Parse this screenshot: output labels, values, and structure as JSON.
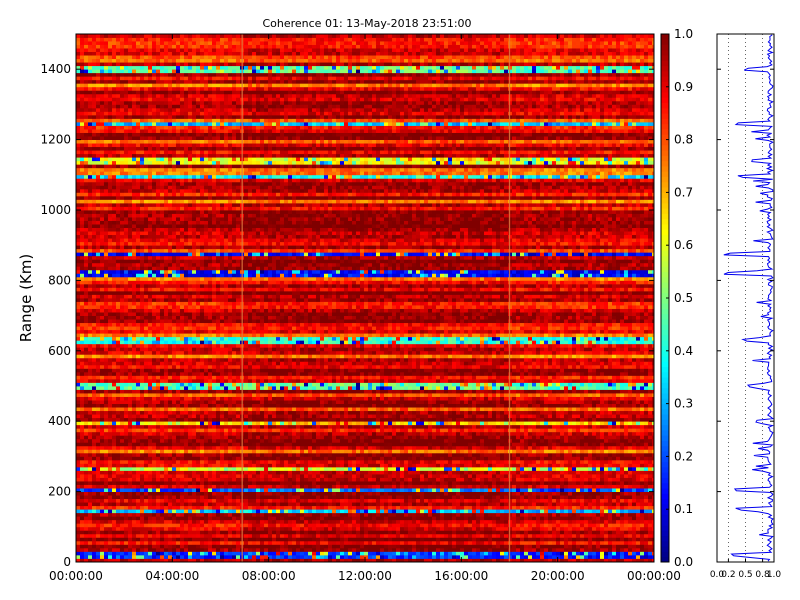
{
  "chart_data": [
    {
      "type": "heatmap",
      "title": "Coherence 01: 13-May-2018 23:51:00",
      "xlabel": "",
      "ylabel": "Range (Km)",
      "x_tick_labels": [
        "00:00:00",
        "04:00:00",
        "08:00:00",
        "12:00:00",
        "16:00:00",
        "20:00:00",
        "00:00:00"
      ],
      "x_range_hours": [
        0,
        24
      ],
      "y_tick_labels": [
        "0",
        "200",
        "400",
        "600",
        "800",
        "1000",
        "1200",
        "1400"
      ],
      "ylim": [
        0,
        1500
      ],
      "colormap": "jet",
      "colorbar": {
        "range": [
          0.0,
          1.0
        ],
        "tick_labels": [
          "0.0",
          "0.1",
          "0.2",
          "0.3",
          "0.4",
          "0.5",
          "0.6",
          "0.7",
          "0.8",
          "0.9",
          "1.0"
        ]
      },
      "time_segments_hours": [
        [
          0,
          6.9
        ],
        [
          6.9,
          18.0
        ],
        [
          18.0,
          24.0
        ]
      ],
      "low_coherence_bands_km": [
        {
          "range_km": 20,
          "coherence": 0.15
        },
        {
          "range_km": 148,
          "coherence": 0.3
        },
        {
          "range_km": 205,
          "coherence": 0.2
        },
        {
          "range_km": 262,
          "coherence": 0.55
        },
        {
          "range_km": 395,
          "coherence": 0.65
        },
        {
          "range_km": 500,
          "coherence": 0.45
        },
        {
          "range_km": 630,
          "coherence": 0.4
        },
        {
          "range_km": 820,
          "coherence": 0.1
        },
        {
          "range_km": 875,
          "coherence": 0.1
        },
        {
          "range_km": 1095,
          "coherence": 0.35
        },
        {
          "range_km": 1140,
          "coherence": 0.6
        },
        {
          "range_km": 1245,
          "coherence": 0.3
        },
        {
          "range_km": 1400,
          "coherence": 0.45
        }
      ]
    },
    {
      "type": "line",
      "xlabel": "",
      "ylabel": "",
      "x_tick_labels": [
        "0.0",
        "0.2",
        "0.5",
        "0.8",
        "1.0"
      ],
      "xlim": [
        0,
        1
      ],
      "ylim": [
        0,
        1500
      ],
      "grid": "vertical dotted",
      "series_color": "#0000ee"
    }
  ]
}
